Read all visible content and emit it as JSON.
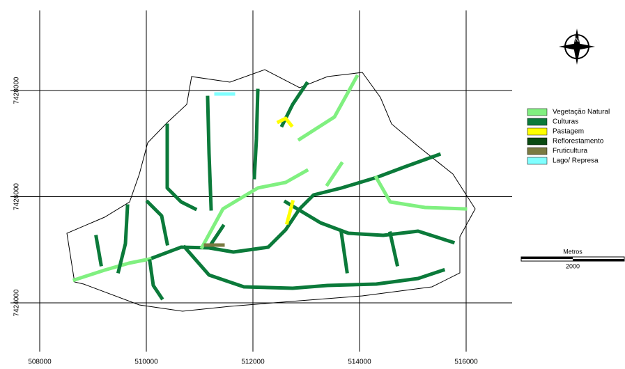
{
  "map": {
    "xticks": [
      508000,
      510000,
      512000,
      514000,
      516000
    ],
    "yticks": [
      7424000,
      7426000,
      7428000
    ],
    "compass": "N",
    "legend": [
      {
        "label": "Vegetação Natural",
        "color": "#80f080"
      },
      {
        "label": "Culturas",
        "color": "#0b7a3a"
      },
      {
        "label": "Pastagem",
        "color": "#ffff00"
      },
      {
        "label": "Reflorestamento",
        "color": "#0a4a12"
      },
      {
        "label": "Fruticultura",
        "color": "#7a7a42"
      },
      {
        "label": "Lago/ Represa",
        "color": "#80ffff"
      }
    ],
    "scale_bar": {
      "unit": "Metros",
      "label": "2000"
    }
  }
}
